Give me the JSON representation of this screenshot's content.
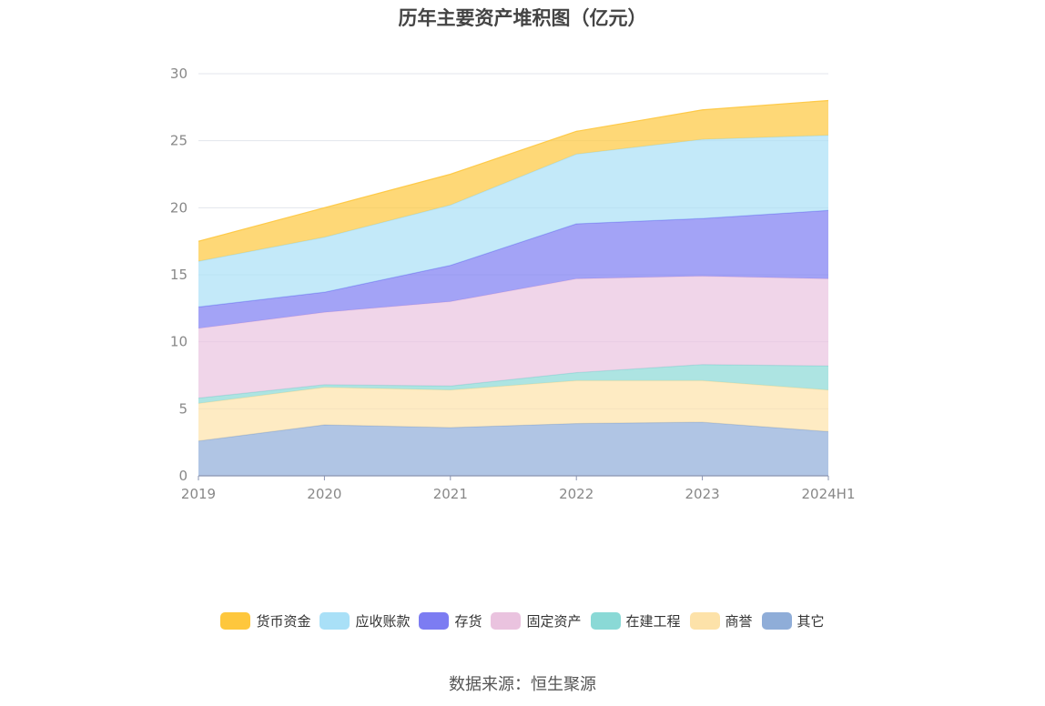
{
  "chart_data": {
    "type": "area",
    "stacked": true,
    "title": "历年主要资产堆积图（亿元）",
    "categories": [
      "2019",
      "2020",
      "2021",
      "2022",
      "2023",
      "2024H1"
    ],
    "ylim": [
      0,
      30
    ],
    "yticks": [
      0,
      5,
      10,
      15,
      20,
      25,
      30
    ],
    "grid": true,
    "legend_position": "bottom",
    "series": [
      {
        "name": "其它",
        "color": "#8fadd8",
        "values": [
          2.6,
          3.8,
          3.6,
          3.9,
          4.0,
          3.3
        ]
      },
      {
        "name": "商誉",
        "color": "#fde2a9",
        "values": [
          2.8,
          2.8,
          2.8,
          3.2,
          3.1,
          3.1
        ]
      },
      {
        "name": "在建工程",
        "color": "#8ad9d6",
        "values": [
          0.4,
          0.2,
          0.3,
          0.6,
          1.2,
          1.8
        ]
      },
      {
        "name": "固定资产",
        "color": "#eac3df",
        "values": [
          5.2,
          5.4,
          6.3,
          7.0,
          6.6,
          6.5
        ]
      },
      {
        "name": "存货",
        "color": "#7c7cf2",
        "values": [
          1.6,
          1.5,
          2.7,
          4.1,
          4.3,
          5.1
        ]
      },
      {
        "name": "应收账款",
        "color": "#a9e0f7",
        "values": [
          3.4,
          4.1,
          4.5,
          5.2,
          5.9,
          5.6
        ]
      },
      {
        "name": "货币资金",
        "color": "#fec73d",
        "values": [
          1.5,
          2.2,
          2.3,
          1.7,
          2.2,
          2.6
        ]
      }
    ],
    "legend_order": [
      "货币资金",
      "应收账款",
      "存货",
      "固定资产",
      "在建工程",
      "商誉",
      "其它"
    ]
  },
  "source": "数据来源：恒生聚源"
}
